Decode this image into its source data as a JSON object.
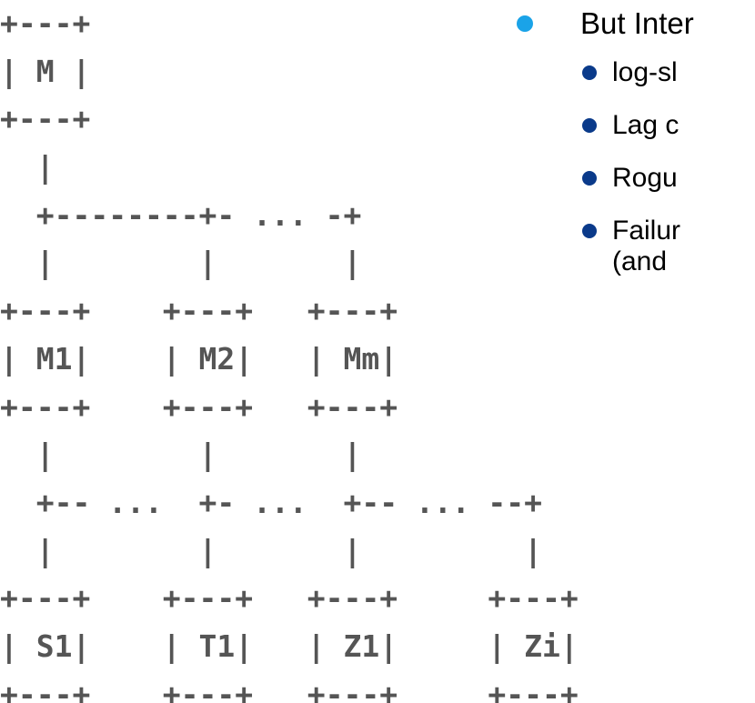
{
  "ascii_diagram": {
    "lines": [
      "+---+",
      "| M |",
      "+---+",
      "  |",
      "  +--------+- ... -+",
      "  |        |       |",
      "+---+    +---+   +---+",
      "| M1|    | M2|   | Mm|",
      "+---+    +---+   +---+",
      "  |        |       |",
      "  +-- ...  +- ...  +-- ... --+",
      "  |        |       |         |",
      "+---+    +---+   +---+     +---+",
      "| S1|    | T1|   | Z1|     | Zi|",
      "+---+    +---+   +---+     +---+"
    ],
    "text_color": "#555555"
  },
  "bullets": {
    "main": {
      "text": "But Inter",
      "dot_color": "#1aa3e8"
    },
    "sub_dot_color": "#0a3a8a",
    "sub_items": [
      {
        "text": "log-sl"
      },
      {
        "text": "Lag c"
      },
      {
        "text": "Rogu"
      },
      {
        "text": "Failur",
        "continuation": "(and"
      }
    ]
  }
}
